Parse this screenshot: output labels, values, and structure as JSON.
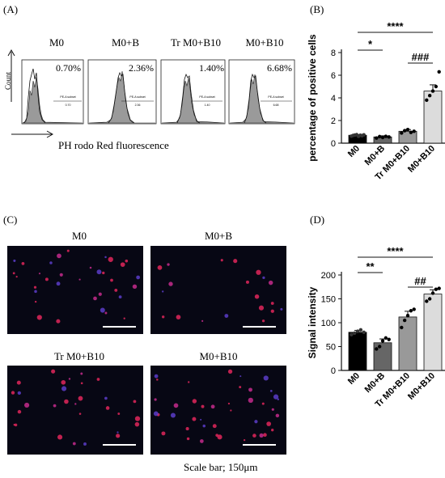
{
  "panels": {
    "A": {
      "label": "(A)",
      "y_axis_label": "Count",
      "x_axis_label": "PH rodo Red fluorescence",
      "histograms": [
        {
          "title": "M0",
          "percent": "0.70%",
          "gate_name": "PE-A subset",
          "gate_value": "0.70"
        },
        {
          "title": "M0+B",
          "percent": "2.36%",
          "gate_name": "PE-A subset",
          "gate_value": "2.36"
        },
        {
          "title": "Tr M0+B10",
          "percent": "1.40%",
          "gate_name": "PE-A subset",
          "gate_value": "1.40"
        },
        {
          "title": "M0+B10",
          "percent": "6.68%",
          "gate_name": "PE-A subset",
          "gate_value": "6.68"
        }
      ]
    },
    "B": {
      "label": "(B)"
    },
    "C": {
      "label": "(C)",
      "images": [
        {
          "title": "M0"
        },
        {
          "title": "M0+B"
        },
        {
          "title": "Tr M0+B10"
        },
        {
          "title": "M0+B10"
        }
      ],
      "scale_text": "Scale bar; 150μm"
    },
    "D": {
      "label": "(D)"
    }
  },
  "chart_data": [
    {
      "type": "bar",
      "panel": "B",
      "categories": [
        "M0",
        "M0+B",
        "Tr M0+B10",
        "M0+B10"
      ],
      "values": [
        0.7,
        0.55,
        1.05,
        4.6
      ],
      "errors": [
        0.05,
        0.1,
        0.15,
        0.55
      ],
      "points": [
        [
          0.62,
          0.68,
          0.72,
          0.75,
          0.6,
          0.7,
          0.66,
          0.74
        ],
        [
          0.45,
          0.58,
          0.5,
          0.6,
          0.55
        ],
        [
          0.9,
          1.1,
          1.2,
          0.95,
          1.05
        ],
        [
          3.8,
          4.2,
          4.6,
          5.0,
          6.3
        ]
      ],
      "bar_colors": [
        "#000000",
        "#666666",
        "#999999",
        "#dcdcdc"
      ],
      "ylabel": "percentage of positive cells",
      "ylim": [
        0,
        8
      ],
      "yticks": [
        0,
        2,
        4,
        6,
        8
      ],
      "significance": [
        {
          "from": 0,
          "to": 1,
          "label": "*"
        },
        {
          "from": 0,
          "to": 3,
          "label": "****"
        },
        {
          "from": 2,
          "to": 3,
          "label": "###"
        }
      ]
    },
    {
      "type": "bar",
      "panel": "D",
      "categories": [
        "M0",
        "M0+B",
        "Tr M0+B10",
        "M0+B10"
      ],
      "values": [
        80,
        58,
        112,
        160
      ],
      "errors": [
        4,
        8,
        12,
        9
      ],
      "points": [
        [
          75,
          78,
          82,
          85,
          80
        ],
        [
          45,
          50,
          62,
          68,
          65
        ],
        [
          90,
          105,
          115,
          125,
          128
        ],
        [
          145,
          150,
          162,
          170,
          172
        ]
      ],
      "bar_colors": [
        "#000000",
        "#666666",
        "#999999",
        "#dcdcdc"
      ],
      "ylabel": "Signal intensity",
      "ylim": [
        0,
        200
      ],
      "yticks": [
        0,
        50,
        100,
        150,
        200
      ],
      "significance": [
        {
          "from": 0,
          "to": 1,
          "label": "**"
        },
        {
          "from": 0,
          "to": 3,
          "label": "****"
        },
        {
          "from": 2,
          "to": 3,
          "label": "##"
        }
      ]
    }
  ]
}
